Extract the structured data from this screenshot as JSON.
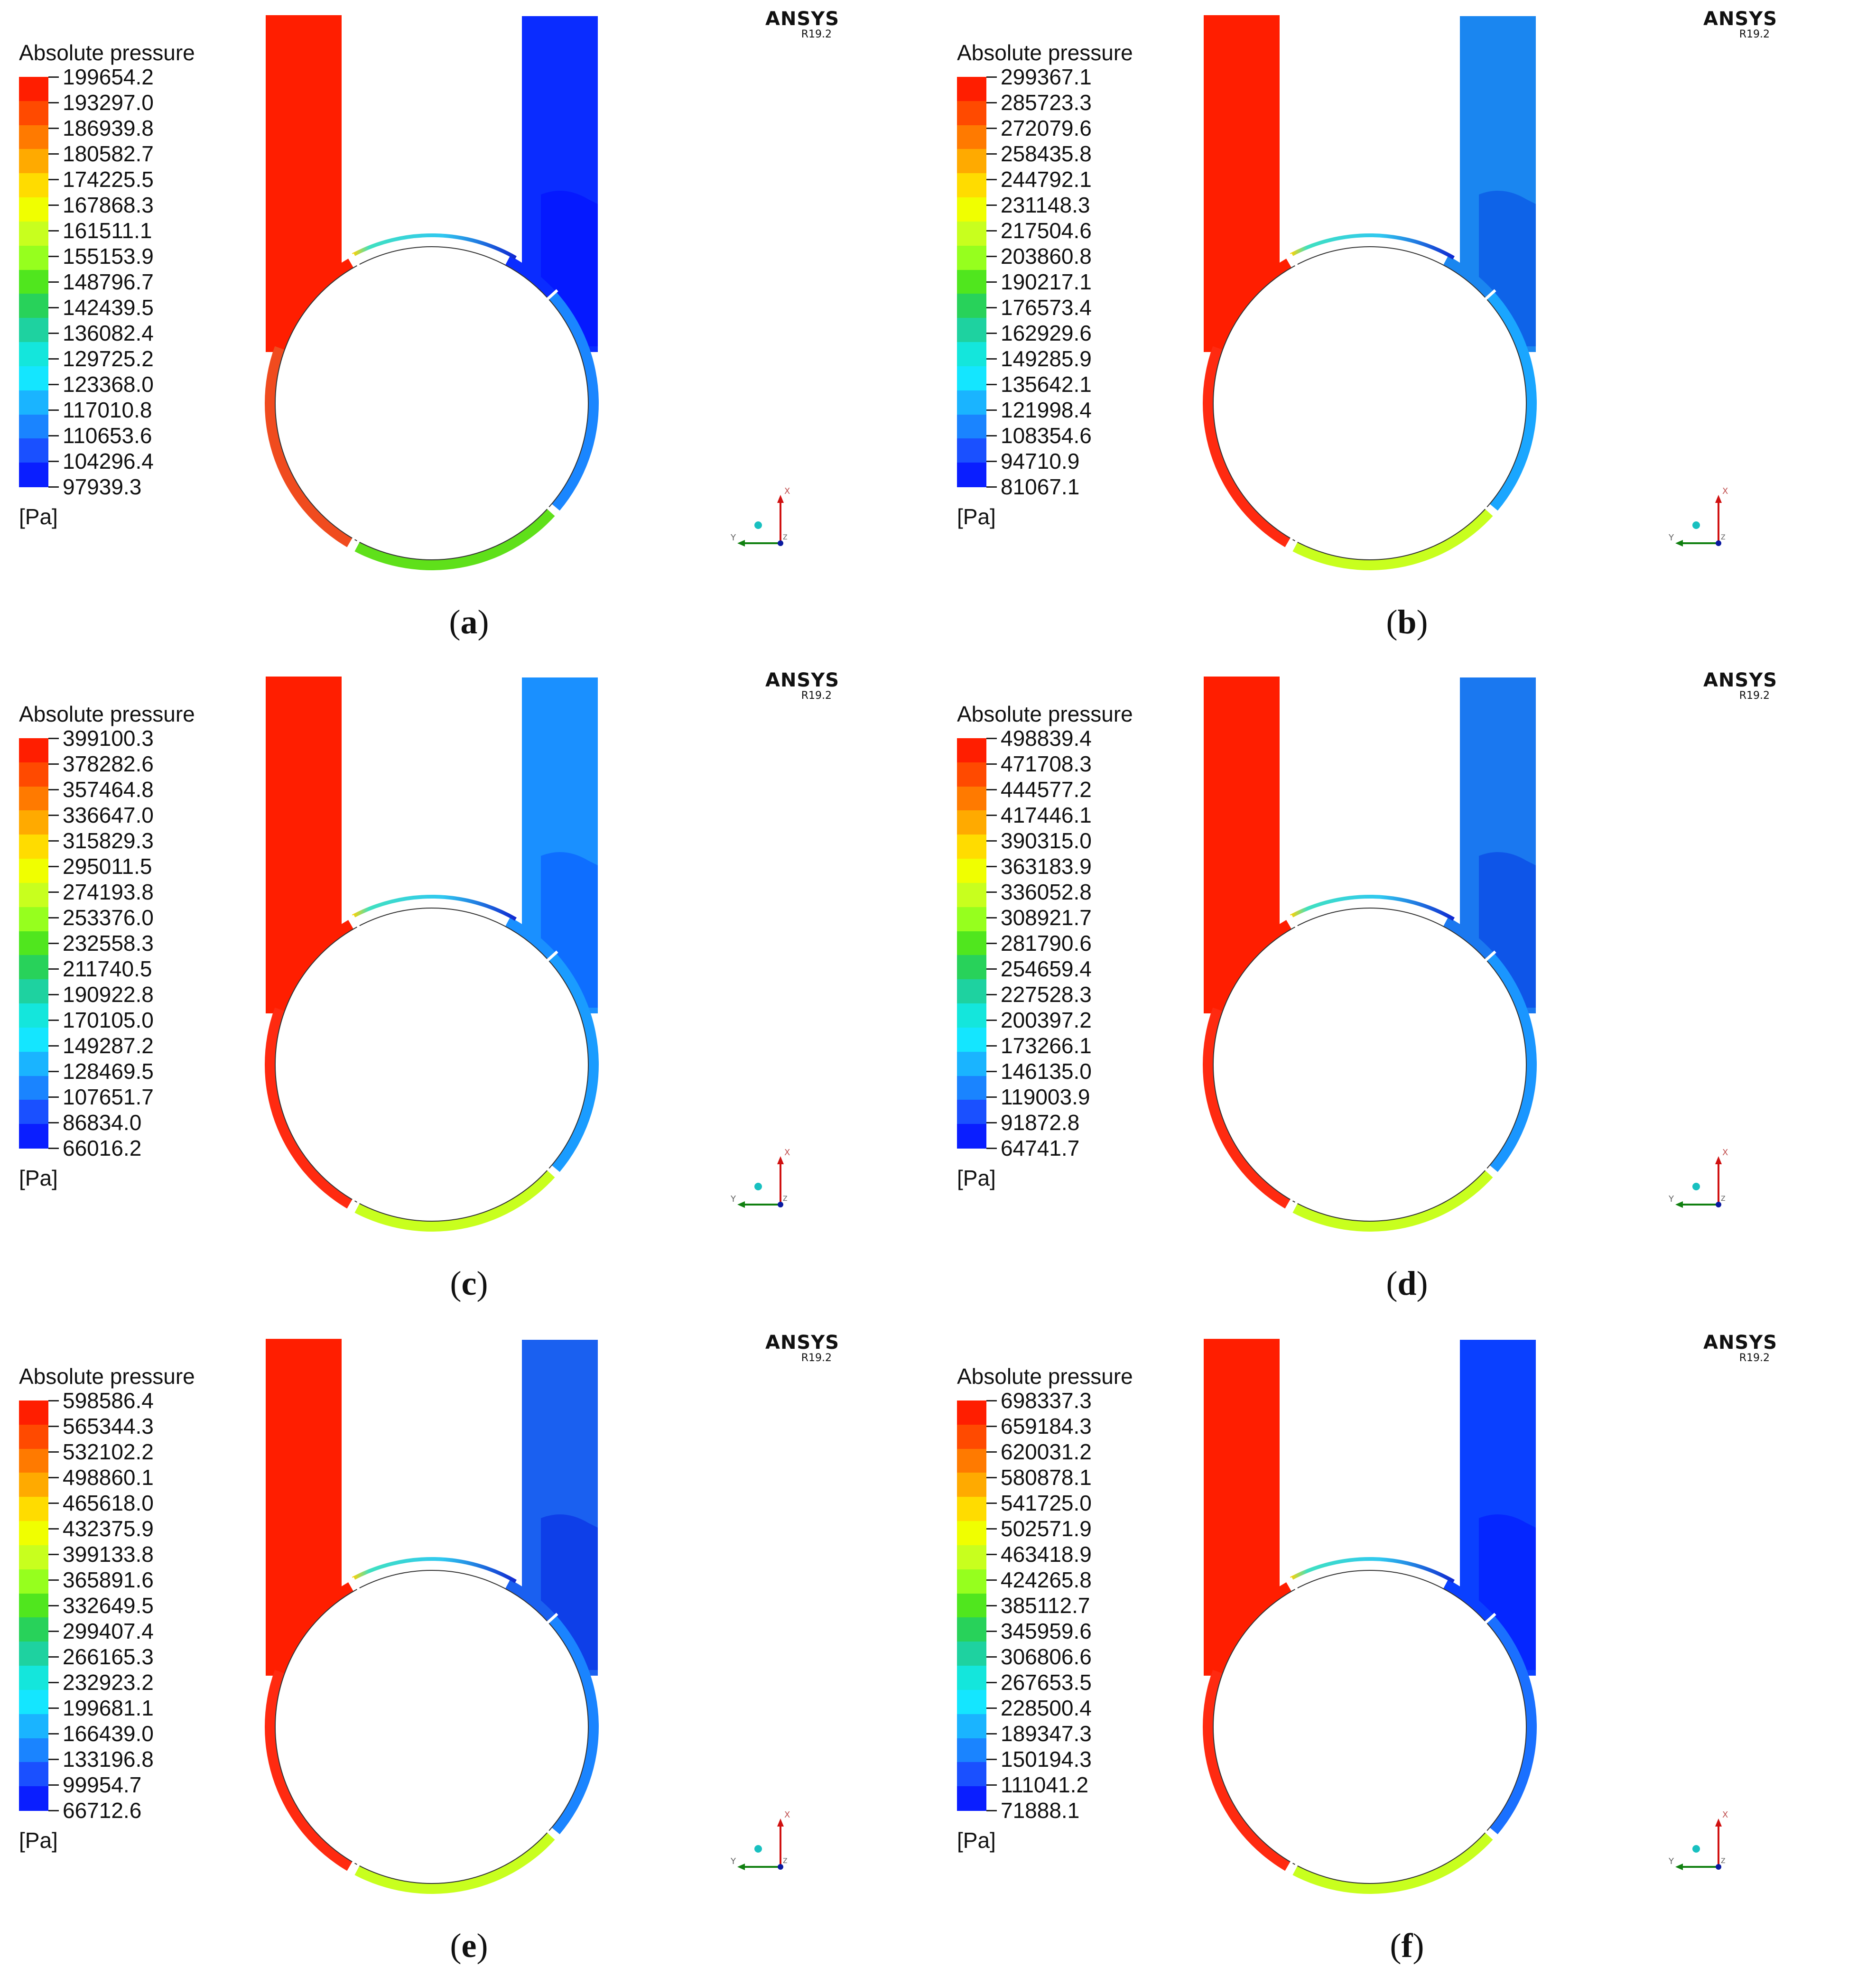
{
  "panels": [
    {
      "caption_open": "(",
      "caption_letter": "a",
      "caption_close": ")",
      "legend_title": "Absolute pressure",
      "unit": "[Pa]",
      "brand": "ANSYS",
      "version": "R19.2",
      "ticks": [
        "199654.2",
        "193297.0",
        "186939.8",
        "180582.7",
        "174225.5",
        "167868.3",
        "161511.1",
        "155153.9",
        "148796.7",
        "142439.5",
        "136082.4",
        "129725.2",
        "123368.0",
        "117010.8",
        "110653.6",
        "104296.4",
        "97939.3"
      ],
      "colors": {
        "inlet": "#ff1e00",
        "outlet": "#0a2cff",
        "left_arc": "#f04b1e",
        "bottom_arc": "#5fe01a",
        "right_arc": "#1a86ff"
      }
    },
    {
      "caption_open": "(",
      "caption_letter": "b",
      "caption_close": ")",
      "legend_title": "Absolute pressure",
      "unit": "[Pa]",
      "brand": "ANSYS",
      "version": "R19.2",
      "ticks": [
        "299367.1",
        "285723.3",
        "272079.6",
        "258435.8",
        "244792.1",
        "231148.3",
        "217504.6",
        "203860.8",
        "190217.1",
        "176573.4",
        "162929.6",
        "149285.9",
        "135642.1",
        "121998.4",
        "108354.6",
        "94710.9",
        "81067.1"
      ],
      "colors": {
        "inlet": "#ff1e00",
        "outlet": "#1a86f0",
        "left_arc": "#ff2a10",
        "bottom_arc": "#c8ff1e",
        "right_arc": "#1aa6ff"
      }
    },
    {
      "caption_open": "(",
      "caption_letter": "c",
      "caption_close": ")",
      "legend_title": "Absolute pressure",
      "unit": "[Pa]",
      "brand": "ANSYS",
      "version": "R19.2",
      "ticks": [
        "399100.3",
        "378282.6",
        "357464.8",
        "336647.0",
        "315829.3",
        "295011.5",
        "274193.8",
        "253376.0",
        "232558.3",
        "211740.5",
        "190922.8",
        "170105.0",
        "149287.2",
        "128469.5",
        "107651.7",
        "86834.0",
        "66016.2"
      ],
      "colors": {
        "inlet": "#ff1e00",
        "outlet": "#1a90ff",
        "left_arc": "#ff2a10",
        "bottom_arc": "#c8ff1e",
        "right_arc": "#1a9cff"
      }
    },
    {
      "caption_open": "(",
      "caption_letter": "d",
      "caption_close": ")",
      "legend_title": "Absolute pressure",
      "unit": "[Pa]",
      "brand": "ANSYS",
      "version": "R19.2",
      "ticks": [
        "498839.4",
        "471708.3",
        "444577.2",
        "417446.1",
        "390315.0",
        "363183.9",
        "336052.8",
        "308921.7",
        "281790.6",
        "254659.4",
        "227528.3",
        "200397.2",
        "173266.1",
        "146135.0",
        "119003.9",
        "91872.8",
        "64741.7"
      ],
      "colors": {
        "inlet": "#ff1e00",
        "outlet": "#1a78f0",
        "left_arc": "#ff2a10",
        "bottom_arc": "#c8ff1e",
        "right_arc": "#1a96ff"
      }
    },
    {
      "caption_open": "(",
      "caption_letter": "e",
      "caption_close": ")",
      "legend_title": "Absolute pressure",
      "unit": "[Pa]",
      "brand": "ANSYS",
      "version": "R19.2",
      "ticks": [
        "598586.4",
        "565344.3",
        "532102.2",
        "498860.1",
        "465618.0",
        "432375.9",
        "399133.8",
        "365891.6",
        "332649.5",
        "299407.4",
        "266165.3",
        "232923.2",
        "199681.1",
        "166439.0",
        "133196.8",
        "99954.7",
        "66712.6"
      ],
      "colors": {
        "inlet": "#ff1e00",
        "outlet": "#1a60f0",
        "left_arc": "#ff2a10",
        "bottom_arc": "#c8ff1e",
        "right_arc": "#1a84ff"
      }
    },
    {
      "caption_open": "(",
      "caption_letter": "f",
      "caption_close": ")",
      "legend_title": "Absolute pressure",
      "unit": "[Pa]",
      "brand": "ANSYS",
      "version": "R19.2",
      "ticks": [
        "698337.3",
        "659184.3",
        "620031.2",
        "580878.1",
        "541725.0",
        "502571.9",
        "463418.9",
        "424265.8",
        "385112.7",
        "345959.6",
        "306806.6",
        "267653.5",
        "228500.4",
        "189347.3",
        "150194.3",
        "111041.2",
        "71888.1"
      ],
      "colors": {
        "inlet": "#ff1e00",
        "outlet": "#0a40ff",
        "left_arc": "#ff2a10",
        "bottom_arc": "#c8ff1e",
        "right_arc": "#1a70ff"
      }
    }
  ],
  "colormap": [
    "#ff1e00",
    "#ff4a00",
    "#ff7a00",
    "#ffaa00",
    "#ffdc00",
    "#f0ff00",
    "#c8ff1e",
    "#96ff1e",
    "#50e61e",
    "#28d25a",
    "#1ed2a0",
    "#14e6dc",
    "#14e6ff",
    "#1ab4ff",
    "#1a84ff",
    "#1a50ff",
    "#0a1eff"
  ],
  "triad_axes": {
    "x": "X",
    "y": "Y",
    "z": "Z"
  }
}
